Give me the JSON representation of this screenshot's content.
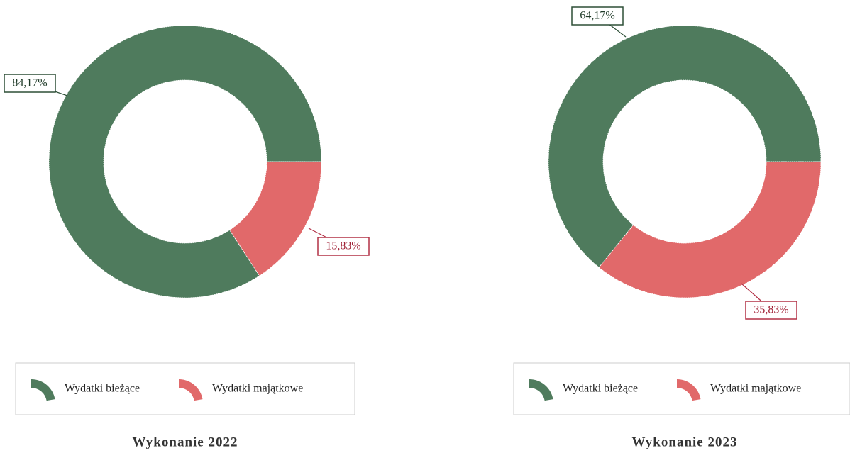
{
  "chart_data": [
    {
      "type": "pie",
      "title": "Wykonanie 2022",
      "categories": [
        "Wydatki bieżące",
        "Wydatki majątkowe"
      ],
      "values": [
        84.17,
        15.83
      ],
      "value_labels": [
        "84,17%",
        "15,83%"
      ],
      "colors": [
        "#4f7b5d",
        "#e1696a"
      ],
      "donut": true,
      "legend": "bottom"
    },
    {
      "type": "pie",
      "title": "Wykonanie 2023",
      "categories": [
        "Wydatki bieżące",
        "Wydatki majątkowe"
      ],
      "values": [
        64.17,
        35.83
      ],
      "value_labels": [
        "64,17%",
        "35,83%"
      ],
      "colors": [
        "#4f7b5d",
        "#e1696a"
      ],
      "donut": true,
      "legend": "bottom"
    }
  ]
}
